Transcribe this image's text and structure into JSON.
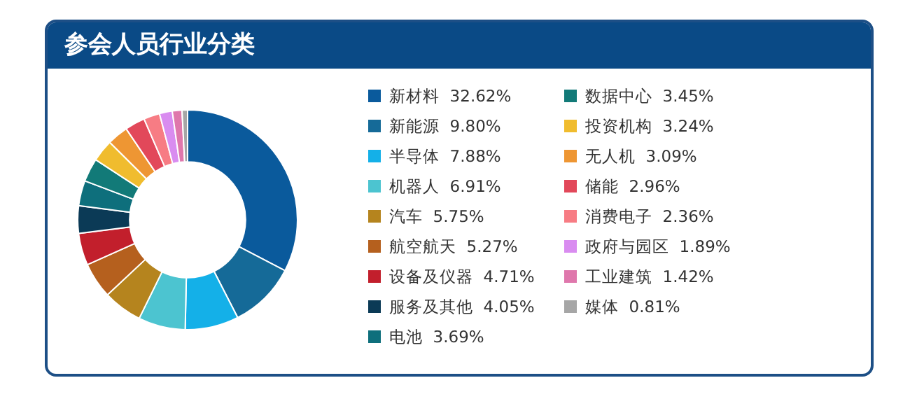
{
  "chart_data": {
    "type": "donut",
    "title": "参会人员行业分类",
    "categories": [
      "新材料",
      "新能源",
      "半导体",
      "机器人",
      "汽车",
      "航空航天",
      "设备及仪器",
      "服务及其他",
      "电池",
      "数据中心",
      "投资机构",
      "无人机",
      "储能",
      "消费电子",
      "政府与园区",
      "工业建筑",
      "媒体"
    ],
    "values": [
      32.62,
      9.8,
      7.88,
      6.91,
      5.75,
      5.27,
      4.71,
      4.05,
      3.69,
      3.45,
      3.24,
      3.09,
      2.96,
      2.36,
      1.89,
      1.42,
      0.81
    ],
    "value_labels": [
      "32.62%",
      "9.80%",
      "7.88%",
      "6.91%",
      "5.75%",
      "5.27%",
      "4.71%",
      "4.05%",
      "3.69%",
      "3.45%",
      "3.24%",
      "3.09%",
      "2.96%",
      "2.36%",
      "1.89%",
      "1.42%",
      "0.81%"
    ],
    "colors": [
      "#0a5a9c",
      "#156a98",
      "#14b0e8",
      "#4cc4d0",
      "#b5841e",
      "#b5601e",
      "#c21f2c",
      "#0b3a56",
      "#0e6f7c",
      "#127a78",
      "#f0bc2e",
      "#ee9633",
      "#e2485a",
      "#f77c84",
      "#d98cf0",
      "#df77ac",
      "#a6a6a6"
    ],
    "legend": "right"
  }
}
